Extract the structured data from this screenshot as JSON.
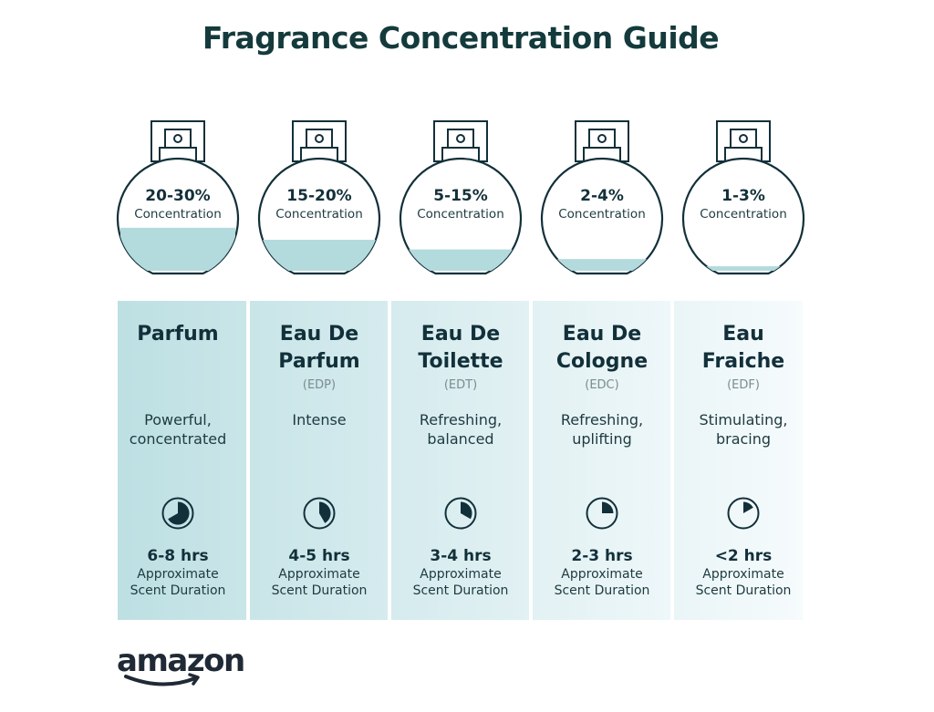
{
  "title": "Fragrance Concentration Guide",
  "colors": {
    "ink": "#12303a",
    "liquid": "#b3dadd",
    "column_backgrounds": [
      "#bde0e3",
      "#c9e5e8",
      "#d5ebee",
      "#e2f1f3",
      "#eef7f9"
    ]
  },
  "types": [
    {
      "percent": "20-30%",
      "concentration_label": "Concentration",
      "fill_level": 0.38,
      "name_line1": "Parfum",
      "name_line2": "",
      "abbr": "",
      "desc_line1": "Powerful,",
      "desc_line2": "concentrated",
      "clock_hours": 8,
      "clock_icon": "clock-pie-icon",
      "hours": "6-8 hrs",
      "dur_line1": "Approximate",
      "dur_line2": "Scent Duration"
    },
    {
      "percent": "15-20%",
      "concentration_label": "Concentration",
      "fill_level": 0.28,
      "name_line1": "Eau De",
      "name_line2": "Parfum",
      "abbr": "(EDP)",
      "desc_line1": "Intense",
      "desc_line2": "",
      "clock_hours": 5,
      "clock_icon": "clock-pie-icon",
      "hours": "4-5 hrs",
      "dur_line1": "Approximate",
      "dur_line2": "Scent Duration"
    },
    {
      "percent": "5-15%",
      "concentration_label": "Concentration",
      "fill_level": 0.2,
      "name_line1": "Eau De",
      "name_line2": "Toilette",
      "abbr": "(EDT)",
      "desc_line1": "Refreshing,",
      "desc_line2": "balanced",
      "clock_hours": 4,
      "clock_icon": "clock-pie-icon",
      "hours": "3-4 hrs",
      "dur_line1": "Approximate",
      "dur_line2": "Scent Duration"
    },
    {
      "percent": "2-4%",
      "concentration_label": "Concentration",
      "fill_level": 0.12,
      "name_line1": "Eau De",
      "name_line2": "Cologne",
      "abbr": "(EDC)",
      "desc_line1": "Refreshing,",
      "desc_line2": "uplifting",
      "clock_hours": 3,
      "clock_icon": "clock-pie-icon",
      "hours": "2-3 hrs",
      "dur_line1": "Approximate",
      "dur_line2": "Scent Duration"
    },
    {
      "percent": "1-3%",
      "concentration_label": "Concentration",
      "fill_level": 0.06,
      "name_line1": "Eau",
      "name_line2": "Fraiche",
      "abbr": "(EDF)",
      "desc_line1": "Stimulating,",
      "desc_line2": "bracing",
      "clock_hours": 2,
      "clock_icon": "clock-pie-icon",
      "hours": "<2 hrs",
      "dur_line1": "Approximate",
      "dur_line2": "Scent Duration"
    }
  ],
  "logo": "amazon"
}
